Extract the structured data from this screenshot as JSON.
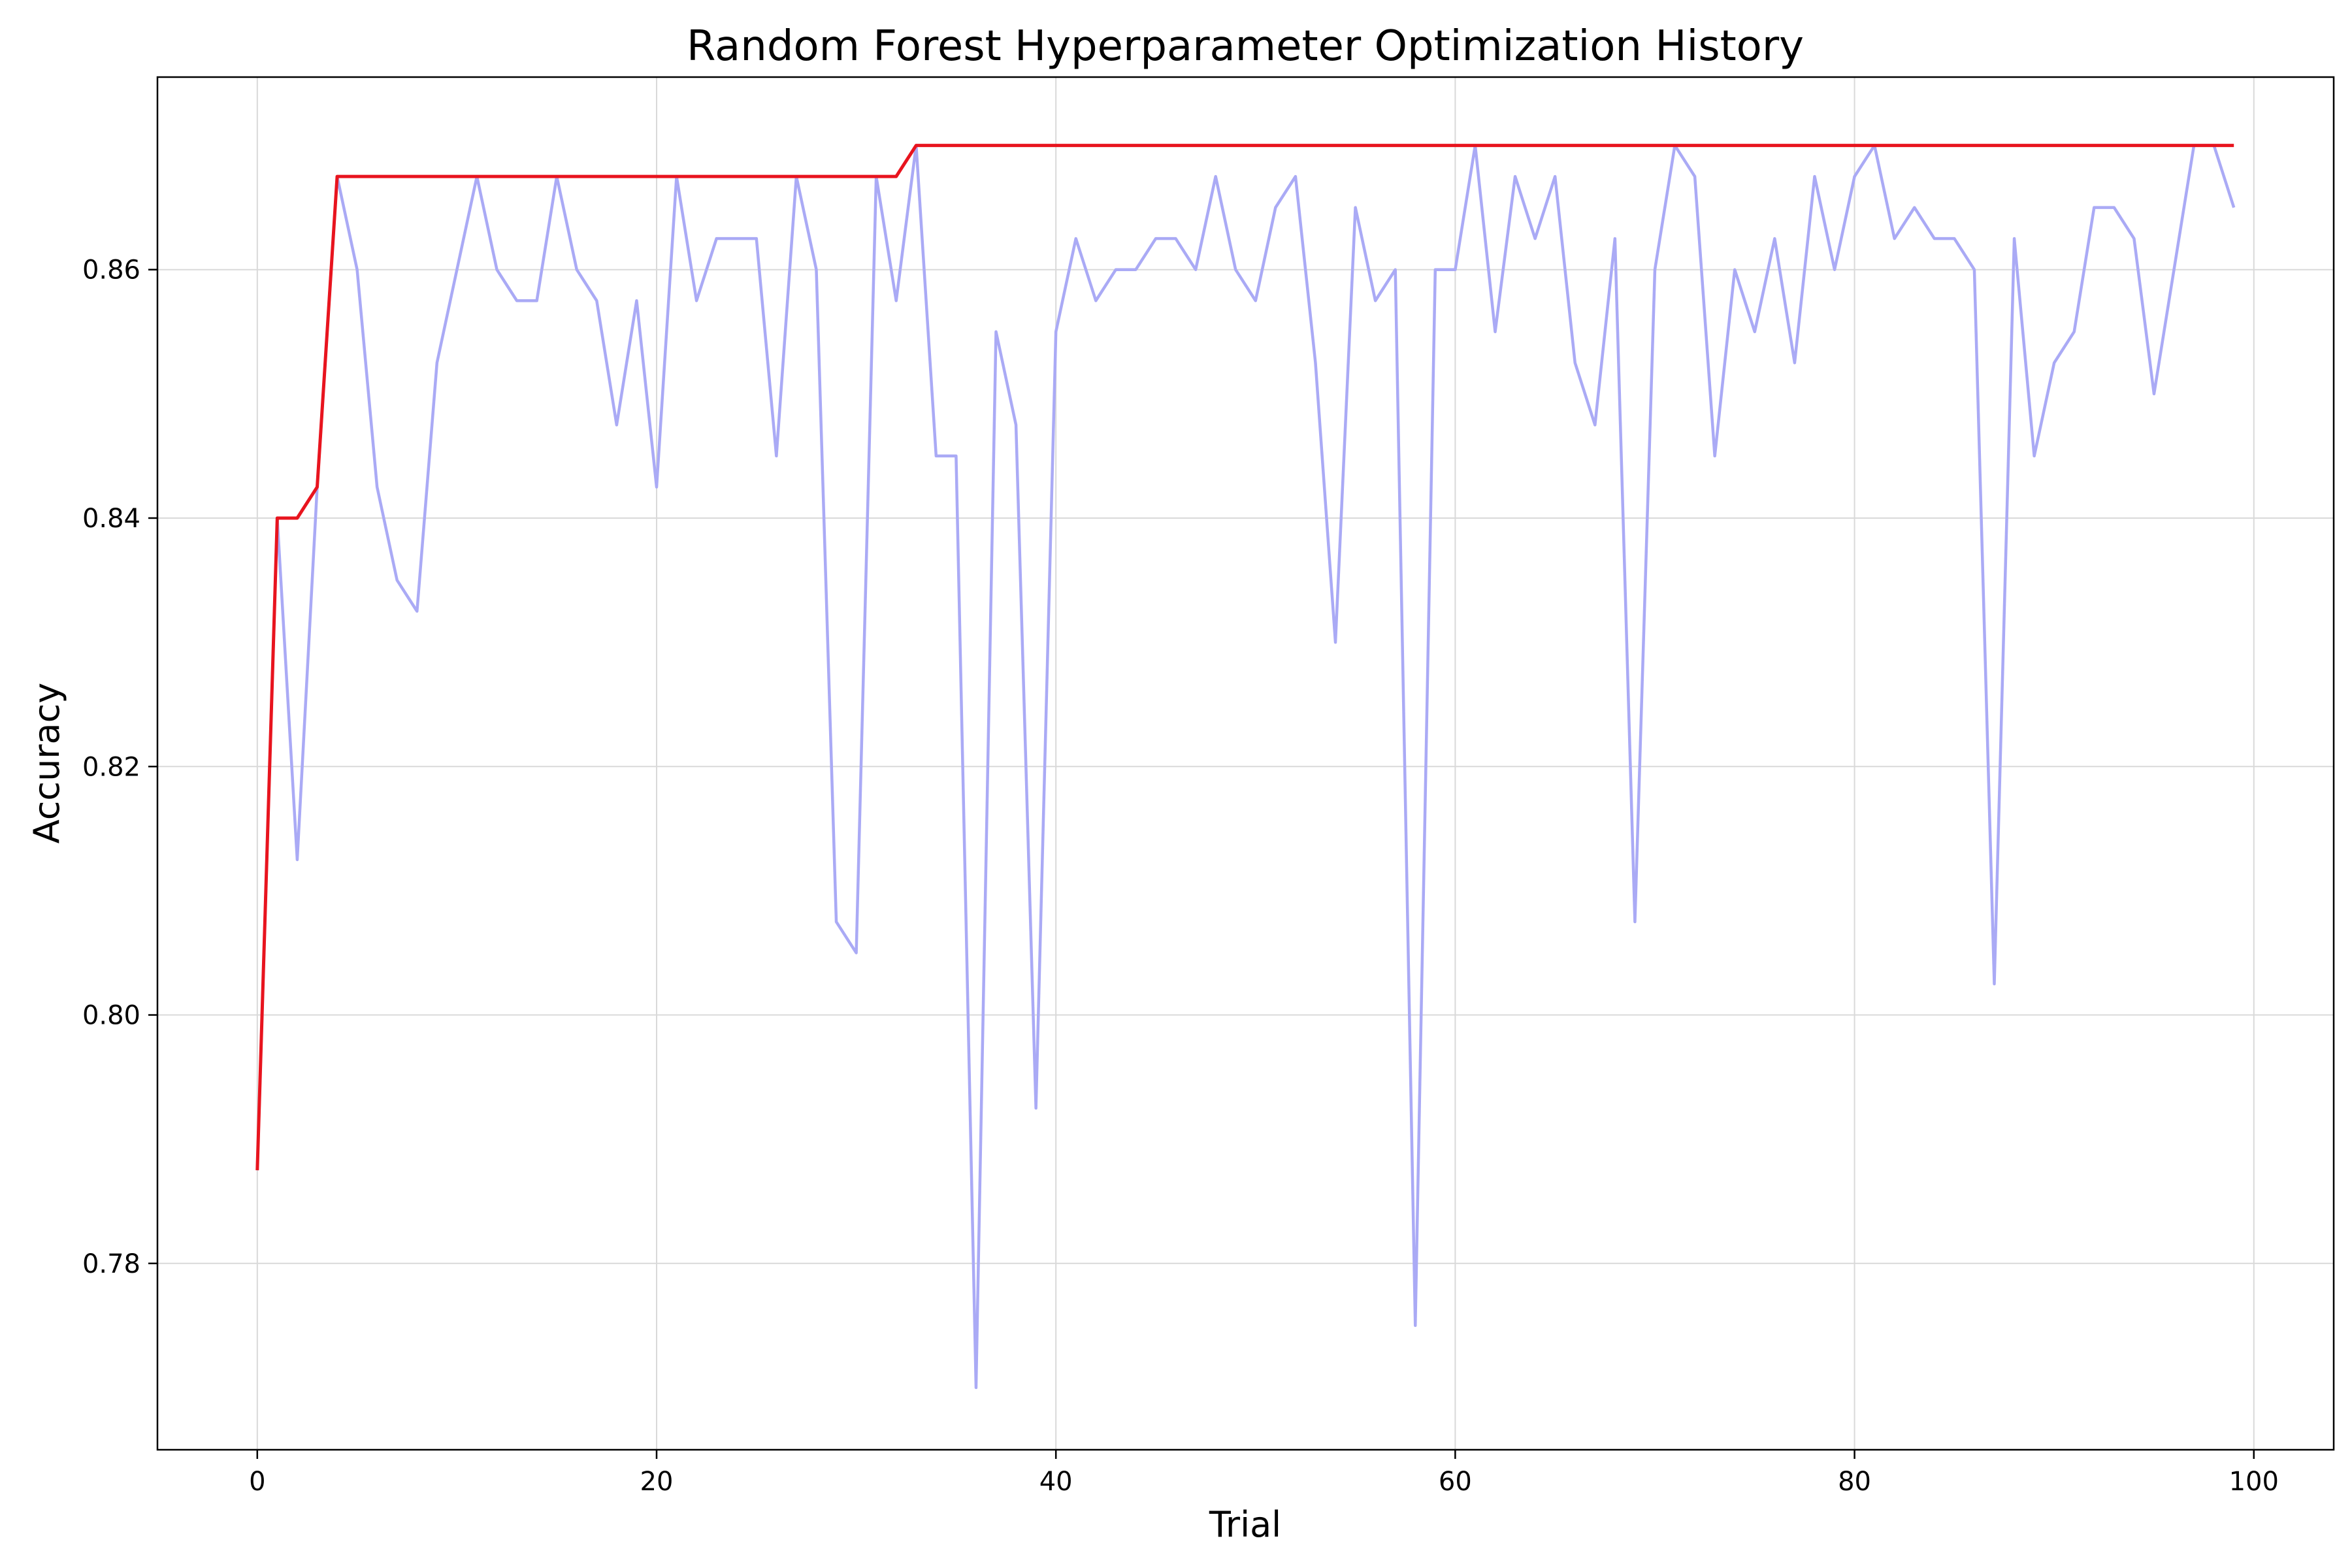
{
  "chart_data": {
    "type": "line",
    "title": "Random Forest Hyperparameter Optimization History",
    "xlabel": "Trial",
    "ylabel": "Accuracy",
    "xlim": [
      -5,
      104
    ],
    "ylim": [
      0.765,
      0.8755
    ],
    "xticks": [
      0,
      20,
      40,
      60,
      80,
      100
    ],
    "yticks": [
      0.78,
      0.8,
      0.82,
      0.84,
      0.86
    ],
    "ytick_labels": [
      "0.78",
      "0.80",
      "0.82",
      "0.84",
      "0.86"
    ],
    "grid": true,
    "x": [
      0,
      1,
      2,
      3,
      4,
      5,
      6,
      7,
      8,
      9,
      10,
      11,
      12,
      13,
      14,
      15,
      16,
      17,
      18,
      19,
      20,
      21,
      22,
      23,
      24,
      25,
      26,
      27,
      28,
      29,
      30,
      31,
      32,
      33,
      34,
      35,
      36,
      37,
      38,
      39,
      40,
      41,
      42,
      43,
      44,
      45,
      46,
      47,
      48,
      49,
      50,
      51,
      52,
      53,
      54,
      55,
      56,
      57,
      58,
      59,
      60,
      61,
      62,
      63,
      64,
      65,
      66,
      67,
      68,
      69,
      70,
      71,
      72,
      73,
      74,
      75,
      76,
      77,
      78,
      79,
      80,
      81,
      82,
      83,
      84,
      85,
      86,
      87,
      88,
      89,
      90,
      91,
      92,
      93,
      94,
      95,
      96,
      97,
      98,
      99
    ],
    "series": [
      {
        "color": "#aaaaf5",
        "values": [
          0.7875,
          0.84,
          0.8125,
          0.8425,
          0.8675,
          0.86,
          0.8425,
          0.835,
          0.8325,
          0.8525,
          0.86,
          0.8675,
          0.86,
          0.8575,
          0.8575,
          0.8675,
          0.86,
          0.8575,
          0.8475,
          0.8575,
          0.8425,
          0.8675,
          0.8575,
          0.8625,
          0.8625,
          0.8625,
          0.845,
          0.8675,
          0.86,
          0.8075,
          0.805,
          0.8675,
          0.8575,
          0.87,
          0.845,
          0.845,
          0.77,
          0.855,
          0.8475,
          0.7925,
          0.855,
          0.8625,
          0.8575,
          0.86,
          0.86,
          0.8625,
          0.8625,
          0.86,
          0.8675,
          0.86,
          0.8575,
          0.865,
          0.8675,
          0.8525,
          0.83,
          0.865,
          0.8575,
          0.86,
          0.775,
          0.86,
          0.86,
          0.87,
          0.855,
          0.8675,
          0.8625,
          0.8675,
          0.8525,
          0.8475,
          0.8625,
          0.8075,
          0.86,
          0.87,
          0.8675,
          0.845,
          0.86,
          0.855,
          0.8625,
          0.8525,
          0.8675,
          0.86,
          0.8675,
          0.87,
          0.8625,
          0.865,
          0.8625,
          0.8625,
          0.86,
          0.8025,
          0.8625,
          0.845,
          0.8525,
          0.855,
          0.865,
          0.865,
          0.8625,
          0.85,
          0.86,
          0.87,
          0.87,
          0.865
        ]
      },
      {
        "color": "#e8141e",
        "values": [
          0.7875,
          0.84,
          0.84,
          0.8425,
          0.8675,
          0.8675,
          0.8675,
          0.8675,
          0.8675,
          0.8675,
          0.8675,
          0.8675,
          0.8675,
          0.8675,
          0.8675,
          0.8675,
          0.8675,
          0.8675,
          0.8675,
          0.8675,
          0.8675,
          0.8675,
          0.8675,
          0.8675,
          0.8675,
          0.8675,
          0.8675,
          0.8675,
          0.8675,
          0.8675,
          0.8675,
          0.8675,
          0.8675,
          0.87,
          0.87,
          0.87,
          0.87,
          0.87,
          0.87,
          0.87,
          0.87,
          0.87,
          0.87,
          0.87,
          0.87,
          0.87,
          0.87,
          0.87,
          0.87,
          0.87,
          0.87,
          0.87,
          0.87,
          0.87,
          0.87,
          0.87,
          0.87,
          0.87,
          0.87,
          0.87,
          0.87,
          0.87,
          0.87,
          0.87,
          0.87,
          0.87,
          0.87,
          0.87,
          0.87,
          0.87,
          0.87,
          0.87,
          0.87,
          0.87,
          0.87,
          0.87,
          0.87,
          0.87,
          0.87,
          0.87,
          0.87,
          0.87,
          0.87,
          0.87,
          0.87,
          0.87,
          0.87,
          0.87,
          0.87,
          0.87,
          0.87,
          0.87,
          0.87,
          0.87,
          0.87,
          0.87,
          0.87,
          0.87,
          0.87,
          0.87
        ]
      }
    ]
  }
}
